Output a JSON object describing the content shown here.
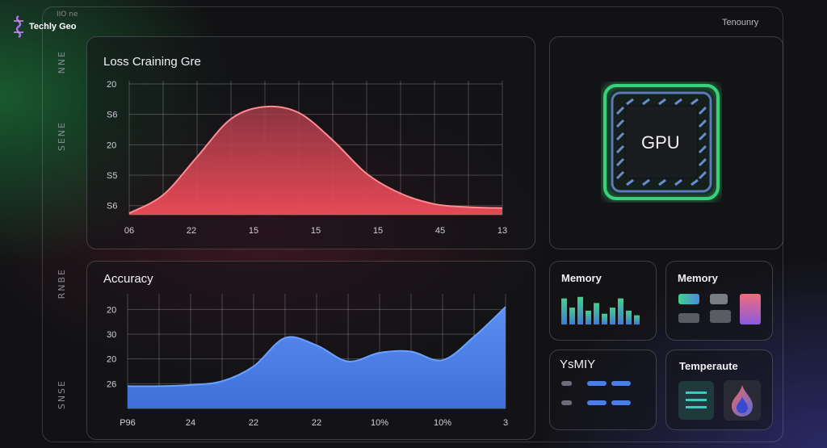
{
  "brand": {
    "name": "Techly Geo",
    "tiny": "IIO ne"
  },
  "header": {
    "right_label": "Tenounry"
  },
  "side_labels": [
    "NNE",
    "SENE",
    "RNBE",
    "SNSE"
  ],
  "loss_panel": {
    "title": "Loss Craining Gre"
  },
  "accuracy_panel": {
    "title": "Accuracy"
  },
  "gpu_panel": {
    "chip_label": "GPU"
  },
  "memory_panel_1": {
    "title": "Memory"
  },
  "memory_panel_2": {
    "title": "Memory"
  },
  "ysmry_panel": {
    "title": "YsMIY"
  },
  "temperature_panel": {
    "title": "Temperaute"
  },
  "colors": {
    "loss_fill": "#e0505a",
    "accuracy_fill": "#4a7ee6",
    "gpu_glow": "#37d27a"
  },
  "chart_data": [
    {
      "type": "area",
      "y_tick_labels": [
        "20",
        "S6",
        "20",
        "S5",
        "S6"
      ],
      "x_tick_labels": [
        "06",
        "22",
        "15",
        "15",
        "15",
        "45",
        "13"
      ],
      "y_tick_values": [
        5,
        4,
        3,
        2,
        1
      ],
      "ylim": [
        0.7,
        5
      ],
      "values": [
        0.75,
        1.35,
        2.6,
        3.85,
        4.25,
        4.05,
        3.15,
        2.05,
        1.4,
        1.05,
        0.95,
        0.92
      ],
      "grid": true
    },
    {
      "type": "area",
      "y_tick_labels": [
        "20",
        "30",
        "20",
        "26"
      ],
      "x_tick_labels": [
        "P96",
        "24",
        "22",
        "22",
        "10%",
        "10%",
        "3"
      ],
      "y_tick_values": [
        4,
        3,
        2,
        1
      ],
      "ylim": [
        0,
        4.5
      ],
      "values": [
        0.9,
        0.9,
        0.95,
        1.1,
        1.7,
        2.85,
        2.55,
        1.9,
        2.25,
        2.3,
        1.95,
        2.9,
        4.1
      ],
      "grid": true
    }
  ],
  "memory_bars": [
    0.85,
    0.55,
    0.9,
    0.45,
    0.7,
    0.35,
    0.55,
    0.85,
    0.45,
    0.3
  ],
  "gauge_rows": [
    [
      0.35,
      0.75,
      0.75
    ],
    [
      0.35,
      0.75,
      0.75
    ]
  ]
}
